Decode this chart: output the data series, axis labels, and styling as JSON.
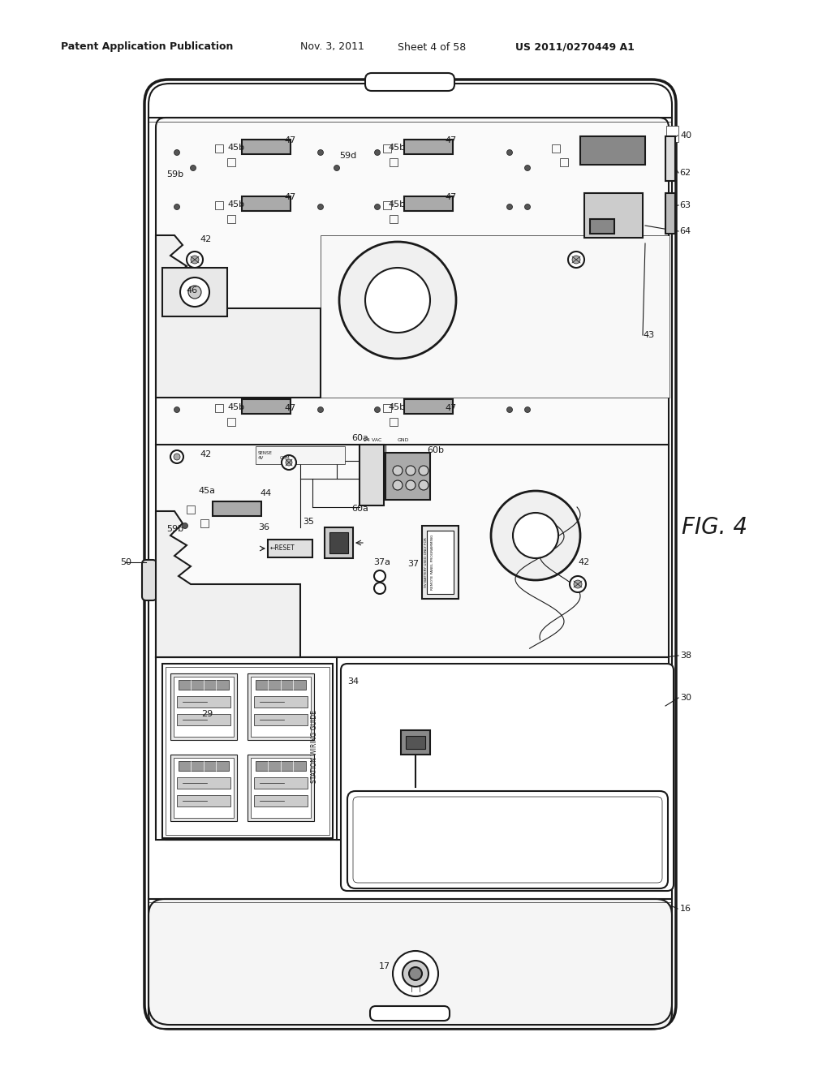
{
  "bg_color": "#ffffff",
  "line_color": "#1a1a1a",
  "header_text1": "Patent Application Publication",
  "header_text2": "Nov. 3, 2011",
  "header_text3": "Sheet 4 of 58",
  "header_text4": "US 2011/0270449 A1",
  "fig_label": "FIG. 4"
}
